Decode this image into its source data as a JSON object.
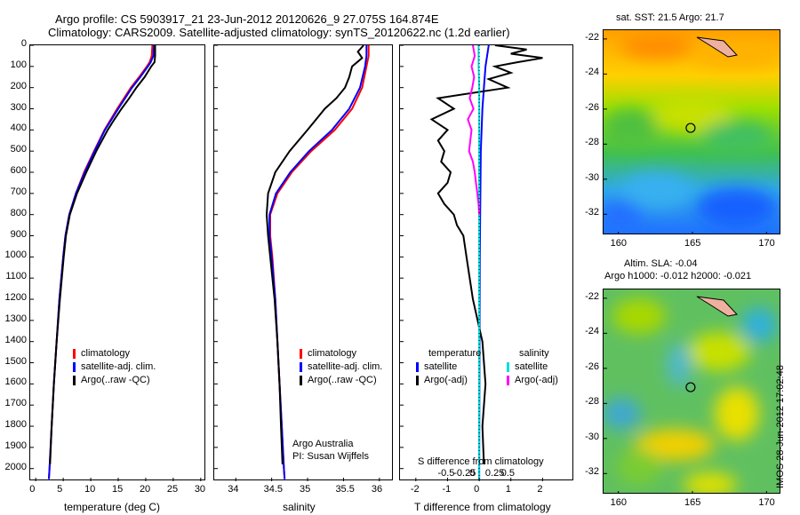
{
  "titles": {
    "line1": "Argo profile: CS 5903917_21 23-Jun-2012 20120626_9 27.075S 164.874E",
    "line2": "Climatology: CARS2009. Satellite-adjusted climatology: synTS_20120622.nc (1.2d earlier)",
    "sst_title": "sat. SST: 21.5 Argo: 21.7",
    "sla_title1": "Altim. SLA: -0.04",
    "sla_title2": "Argo h1000: -0.012 h2000: -0.021"
  },
  "watermark": "IMOS 28-Jun-2012 17:02:48",
  "colors": {
    "climatology": "#ff0000",
    "satellite": "#0000ff",
    "argo": "#000000",
    "sal_satellite": "#00dddd",
    "sal_argo": "#ff00ff"
  },
  "chart_data": [
    {
      "type": "line",
      "xlabel": "temperature (deg C)",
      "ylabel": "",
      "xlim": [
        -1,
        31
      ],
      "ylim": [
        2060,
        0
      ],
      "xticks": [
        "0",
        "5",
        "10",
        "15",
        "20",
        "25",
        "30"
      ],
      "yticks": [
        "0",
        "100",
        "200",
        "300",
        "400",
        "500",
        "600",
        "700",
        "800",
        "900",
        "1000",
        "1100",
        "1200",
        "1300",
        "1400",
        "1500",
        "1600",
        "1700",
        "1800",
        "1900",
        "2000"
      ],
      "legend": [
        "climatology",
        "satellite-adj. clim.",
        "Argo(..raw -QC)"
      ],
      "series": [
        {
          "name": "climatology",
          "depth": [
            0,
            50,
            80,
            100,
            150,
            200,
            300,
            400,
            500,
            600,
            700,
            800,
            900,
            1000,
            1200,
            1400,
            1600,
            1800,
            2000,
            2050
          ],
          "values": [
            21.2,
            21.1,
            20.7,
            20.2,
            18.8,
            17.3,
            14.8,
            12.5,
            10.6,
            8.8,
            7.3,
            6.1,
            5.4,
            5.0,
            4.3,
            3.8,
            3.3,
            2.9,
            2.5,
            2.4
          ]
        },
        {
          "name": "satellite-adj. clim.",
          "depth": [
            0,
            50,
            80,
            100,
            150,
            200,
            300,
            400,
            500,
            600,
            700,
            800,
            900,
            1000,
            1200,
            1400,
            1600,
            1800,
            2000,
            2050
          ],
          "values": [
            21.5,
            21.4,
            20.9,
            20.4,
            19.0,
            17.5,
            15.0,
            12.6,
            10.7,
            8.9,
            7.3,
            6.1,
            5.4,
            5.0,
            4.3,
            3.8,
            3.3,
            2.9,
            2.5,
            2.4
          ]
        },
        {
          "name": "Argo(..raw -QC)",
          "depth": [
            0,
            50,
            80,
            100,
            150,
            200,
            250,
            300,
            350,
            400,
            500,
            600,
            700,
            800,
            900,
            1000,
            1200,
            1400,
            1600,
            1800,
            1980
          ],
          "values": [
            21.7,
            21.7,
            21.6,
            21.0,
            19.8,
            18.3,
            17.0,
            15.6,
            14.3,
            13.1,
            11.0,
            9.2,
            7.5,
            6.2,
            5.5,
            5.1,
            4.4,
            3.8,
            3.3,
            2.9,
            2.6
          ]
        }
      ]
    },
    {
      "type": "line",
      "xlabel": "salinity",
      "ylabel": "",
      "xlim": [
        33.7,
        36.2
      ],
      "ylim": [
        2060,
        0
      ],
      "xticks": [
        "34",
        "34.5",
        "35",
        "35.5",
        "36"
      ],
      "legend": [
        "climatology",
        "satellite-adj. clim.",
        "Argo(..raw -QC)"
      ],
      "annotation": [
        "Argo Australia",
        "PI: Susan Wijffels"
      ],
      "series": [
        {
          "name": "climatology",
          "depth": [
            0,
            50,
            100,
            200,
            300,
            400,
            500,
            600,
            700,
            800,
            900,
            1000,
            1200,
            1400,
            1600,
            1800,
            2000,
            2050
          ],
          "values": [
            35.85,
            35.85,
            35.82,
            35.76,
            35.62,
            35.38,
            35.05,
            34.78,
            34.58,
            34.48,
            34.48,
            34.51,
            34.55,
            34.58,
            34.61,
            34.64,
            34.67,
            34.68
          ]
        },
        {
          "name": "satellite-adj. clim.",
          "depth": [
            0,
            50,
            100,
            200,
            300,
            400,
            500,
            600,
            700,
            800,
            900,
            1000,
            1200,
            1400,
            1600,
            1800,
            2000,
            2050
          ],
          "values": [
            35.82,
            35.82,
            35.8,
            35.73,
            35.58,
            35.34,
            35.02,
            34.76,
            34.56,
            34.47,
            34.47,
            34.5,
            34.55,
            34.58,
            34.61,
            34.64,
            34.67,
            34.68
          ]
        },
        {
          "name": "Argo(..raw -QC)",
          "depth": [
            0,
            30,
            60,
            100,
            150,
            200,
            250,
            300,
            400,
            500,
            600,
            700,
            800,
            900,
            1000,
            1200,
            1400,
            1600,
            1800,
            1980
          ],
          "values": [
            35.78,
            35.7,
            35.76,
            35.62,
            35.58,
            35.52,
            35.4,
            35.24,
            35.0,
            34.75,
            34.55,
            34.45,
            34.43,
            34.45,
            34.48,
            34.54,
            34.58,
            34.61,
            34.63,
            34.65
          ]
        }
      ]
    },
    {
      "type": "line",
      "xlabel": "T difference from climatology",
      "xlabel_top": "S difference from climatology",
      "xlim": [
        -2.5,
        3
      ],
      "ylim": [
        2060,
        0
      ],
      "xticks": [
        "-2",
        "-1",
        "0",
        "1",
        "2"
      ],
      "xticks_top": [
        "-0.5",
        "-0.25",
        "0",
        "0.25",
        "0.5"
      ],
      "legend_temperature": [
        "temperature",
        "satellite",
        "Argo(-adj)"
      ],
      "legend_salinity": [
        "salinity",
        "satellite",
        "Argo(-adj)"
      ],
      "series": [
        {
          "name": "temperature satellite",
          "depth": [
            0,
            100,
            200,
            300,
            500,
            800,
            1000,
            1500,
            2000,
            2050
          ],
          "values": [
            0.3,
            0.2,
            0.15,
            0.1,
            0.05,
            0.03,
            0.02,
            0.01,
            0.0,
            0.0
          ]
        },
        {
          "name": "temperature Argo(-adj)",
          "depth": [
            0,
            20,
            40,
            60,
            80,
            100,
            130,
            160,
            200,
            250,
            300,
            350,
            400,
            450,
            500,
            550,
            600,
            650,
            700,
            750,
            800,
            850,
            900,
            1000,
            1100,
            1200,
            1400,
            1600,
            1800,
            1980
          ],
          "values": [
            0.5,
            1.5,
            1.0,
            2.0,
            1.2,
            0.5,
            1.0,
            0.3,
            0.9,
            -1.3,
            -0.8,
            -1.5,
            -1.0,
            -1.3,
            -1.1,
            -1.2,
            -0.9,
            -1.0,
            -1.3,
            -1.1,
            -0.8,
            -0.7,
            -0.5,
            -0.4,
            -0.3,
            -0.2,
            0.1,
            0.2,
            0.1,
            0.15
          ]
        },
        {
          "name": "salinity satellite",
          "depth": [
            0,
            100,
            200,
            300,
            500,
            800,
            1000,
            1500,
            2000,
            2050
          ],
          "values": [
            -0.01,
            -0.01,
            0.0,
            0.0,
            0.0,
            0.0,
            0.0,
            0.0,
            0.0,
            0.0
          ]
        },
        {
          "name": "salinity Argo(-adj)",
          "depth": [
            0,
            50,
            100,
            150,
            200,
            250,
            300,
            350,
            400,
            450,
            500,
            550,
            600,
            650,
            700,
            750,
            800
          ],
          "values": [
            -0.1,
            -0.07,
            -0.12,
            -0.08,
            -0.11,
            -0.15,
            -0.09,
            -0.18,
            -0.12,
            -0.14,
            -0.16,
            -0.1,
            -0.07,
            -0.05,
            -0.03,
            -0.01,
            0.0
          ]
        }
      ]
    },
    {
      "type": "heatmap",
      "title": "sat. SST: 21.5 Argo: 21.7",
      "xlim": [
        159,
        171
      ],
      "ylim": [
        -33.2,
        -21.5
      ],
      "xticks": [
        "160",
        "165",
        "170"
      ],
      "yticks": [
        "-22",
        "-24",
        "-26",
        "-28",
        "-30",
        "-32"
      ],
      "marker": {
        "lon": 164.874,
        "lat": -27.075
      }
    },
    {
      "type": "heatmap",
      "title": "Altim. SLA: -0.04",
      "subtitle": "Argo h1000: -0.012 h2000: -0.021",
      "xlim": [
        159,
        171
      ],
      "ylim": [
        -33.2,
        -21.5
      ],
      "xticks": [
        "160",
        "165",
        "170"
      ],
      "yticks": [
        "-22",
        "-24",
        "-26",
        "-28",
        "-30",
        "-32"
      ],
      "marker": {
        "lon": 164.874,
        "lat": -27.075
      }
    }
  ]
}
